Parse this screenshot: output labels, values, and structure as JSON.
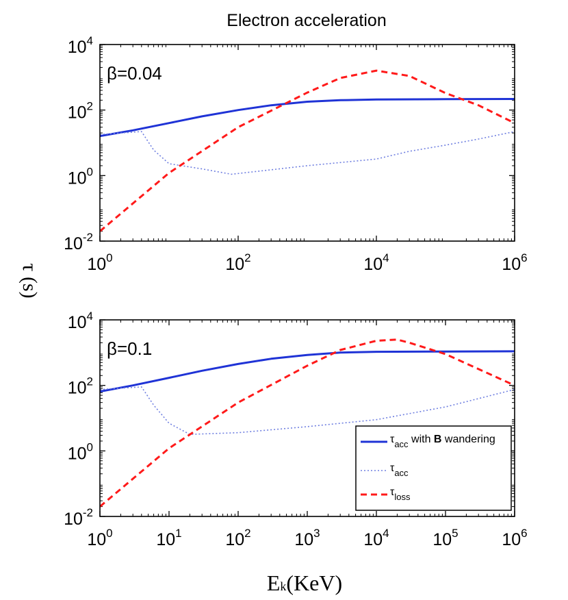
{
  "title": "Electron acceleration",
  "ylabel": "τ (s)",
  "xlabel": {
    "main": "E",
    "sub": "k",
    "unit": "(KeV)"
  },
  "colors": {
    "solid": "#1f33d6",
    "dotted": "#6f7fe0",
    "dashed": "#ff1a1a"
  },
  "legend": {
    "placement": "lower-right of bottom panel",
    "entries": [
      {
        "style": "solid",
        "sym": "τ",
        "sub": "acc",
        "pre": " with ",
        "bold": "B",
        "post": " wandering"
      },
      {
        "style": "dotted",
        "sym": "τ",
        "sub": "acc",
        "pre": "",
        "bold": "",
        "post": ""
      },
      {
        "style": "dashed",
        "sym": "τ",
        "sub": "loss",
        "pre": "",
        "bold": "",
        "post": ""
      }
    ]
  },
  "chart_data": [
    {
      "type": "line",
      "annotation": "β=0.04",
      "xscale": "log",
      "yscale": "log",
      "xlim": [
        1,
        1000000
      ],
      "ylim": [
        0.01,
        10000
      ],
      "xticks": [
        1,
        100,
        10000,
        1000000
      ],
      "xtick_labels": [
        {
          "base": "10",
          "exp": "0"
        },
        {
          "base": "10",
          "exp": "2"
        },
        {
          "base": "10",
          "exp": "4"
        },
        {
          "base": "10",
          "exp": "6"
        }
      ],
      "yticks": [
        0.01,
        1,
        100,
        10000
      ],
      "ytick_labels": [
        {
          "base": "10",
          "exp": "-2"
        },
        {
          "base": "10",
          "exp": "0"
        },
        {
          "base": "10",
          "exp": "2"
        },
        {
          "base": "10",
          "exp": "4"
        }
      ],
      "series": [
        {
          "style": "solid",
          "x": [
            1,
            3,
            10,
            30,
            100,
            300,
            1000,
            3000,
            10000,
            100000,
            1000000
          ],
          "y": [
            16,
            24,
            40,
            64,
            100,
            140,
            180,
            200,
            210,
            215,
            218
          ]
        },
        {
          "style": "dotted",
          "x": [
            1,
            4,
            6,
            10,
            30,
            80,
            300,
            1000,
            3000,
            10000,
            30000,
            100000,
            300000,
            1000000
          ],
          "y": [
            18,
            22,
            6,
            2.3,
            1.6,
            1.1,
            1.5,
            2.0,
            2.5,
            3.2,
            5.5,
            8.5,
            13,
            22
          ]
        },
        {
          "style": "dashed",
          "x": [
            1,
            10,
            100,
            1000,
            3000,
            10000,
            30000,
            100000,
            300000,
            1000000
          ],
          "y": [
            0.02,
            1.2,
            30,
            340,
            950,
            1600,
            1100,
            330,
            140,
            40
          ]
        }
      ]
    },
    {
      "type": "line",
      "annotation": "β=0.1",
      "xscale": "log",
      "yscale": "log",
      "xlim": [
        1,
        1000000
      ],
      "ylim": [
        0.01,
        10000
      ],
      "xticks": [
        1,
        10,
        100,
        1000,
        10000,
        100000,
        1000000
      ],
      "xtick_labels": [
        {
          "base": "10",
          "exp": "0"
        },
        {
          "base": "10",
          "exp": "1"
        },
        {
          "base": "10",
          "exp": "2"
        },
        {
          "base": "10",
          "exp": "3"
        },
        {
          "base": "10",
          "exp": "4"
        },
        {
          "base": "10",
          "exp": "5"
        },
        {
          "base": "10",
          "exp": "6"
        }
      ],
      "yticks": [
        0.01,
        1,
        100,
        10000
      ],
      "ytick_labels": [
        {
          "base": "10",
          "exp": "-2"
        },
        {
          "base": "10",
          "exp": "0"
        },
        {
          "base": "10",
          "exp": "2"
        },
        {
          "base": "10",
          "exp": "4"
        }
      ],
      "series": [
        {
          "style": "solid",
          "x": [
            1,
            3,
            10,
            30,
            100,
            300,
            1000,
            3000,
            10000,
            100000,
            1000000
          ],
          "y": [
            65,
            100,
            170,
            280,
            450,
            650,
            850,
            1000,
            1060,
            1080,
            1100
          ]
        },
        {
          "style": "dotted",
          "x": [
            1,
            4,
            6,
            10,
            20,
            100,
            1000,
            10000,
            100000,
            1000000
          ],
          "y": [
            75,
            90,
            25,
            7,
            3.2,
            3.6,
            5.5,
            9,
            22,
            75
          ]
        },
        {
          "style": "dashed",
          "x": [
            1,
            10,
            100,
            1000,
            3000,
            10000,
            20000,
            30000,
            100000,
            1000000
          ],
          "y": [
            0.02,
            1.2,
            30,
            400,
            1200,
            2300,
            2500,
            2000,
            900,
            100
          ]
        }
      ]
    }
  ]
}
